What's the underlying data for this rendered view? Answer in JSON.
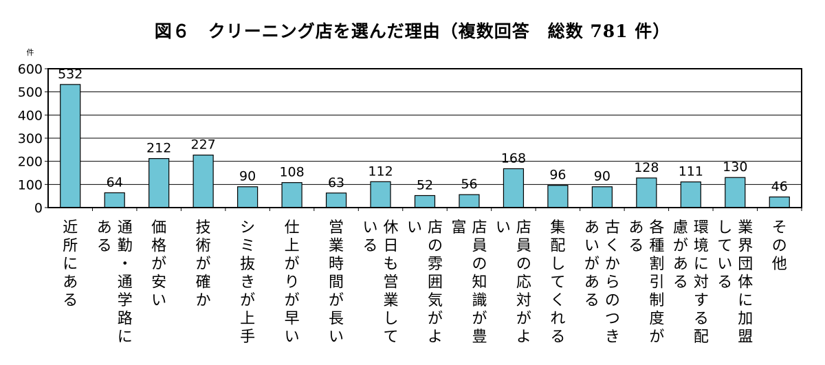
{
  "title": "図６　クリーニング店を選んだ理由（複数回答　総数 781 件）",
  "chart_data": {
    "type": "bar",
    "ylabel": "件",
    "ylim": [
      0,
      600
    ],
    "yticks": [
      0,
      100,
      200,
      300,
      400,
      500,
      600
    ],
    "grid": true,
    "bar_color": "#6EC5D6",
    "categories": [
      "近所にある",
      "通勤・通学路にある",
      "価格が安い",
      "技術が確か",
      "シミ抜きが上手",
      "仕上がりが早い",
      "営業時間が長い",
      "休日も営業している",
      "店の雰囲気がよい",
      "店員の知識が豊富",
      "店員の応対がよい",
      "集配してくれる",
      "古くからのつきあいがある",
      "各種割引制度がある",
      "環境に対する配慮がある",
      "業界団体に加盟している",
      "その他"
    ],
    "category_lines": [
      [
        "近所にある"
      ],
      [
        "通勤・通学路に",
        "ある"
      ],
      [
        "価格が安い"
      ],
      [
        "技術が確か"
      ],
      [
        "シミ抜きが上手"
      ],
      [
        "仕上がりが早い"
      ],
      [
        "営業時間が長い"
      ],
      [
        "休日も営業して",
        "いる"
      ],
      [
        "店の雰囲気がよ",
        "い"
      ],
      [
        "店員の知識が豊",
        "富"
      ],
      [
        "店員の応対がよ",
        "い"
      ],
      [
        "集配してくれる"
      ],
      [
        "古くからのつき",
        "あいがある"
      ],
      [
        "各種割引制度が",
        "ある"
      ],
      [
        "環境に対する配",
        "慮がある"
      ],
      [
        "業界団体に加盟",
        "している"
      ],
      [
        "その他"
      ]
    ],
    "values": [
      532,
      64,
      212,
      227,
      90,
      108,
      63,
      112,
      52,
      56,
      168,
      96,
      90,
      128,
      111,
      130,
      46
    ]
  }
}
